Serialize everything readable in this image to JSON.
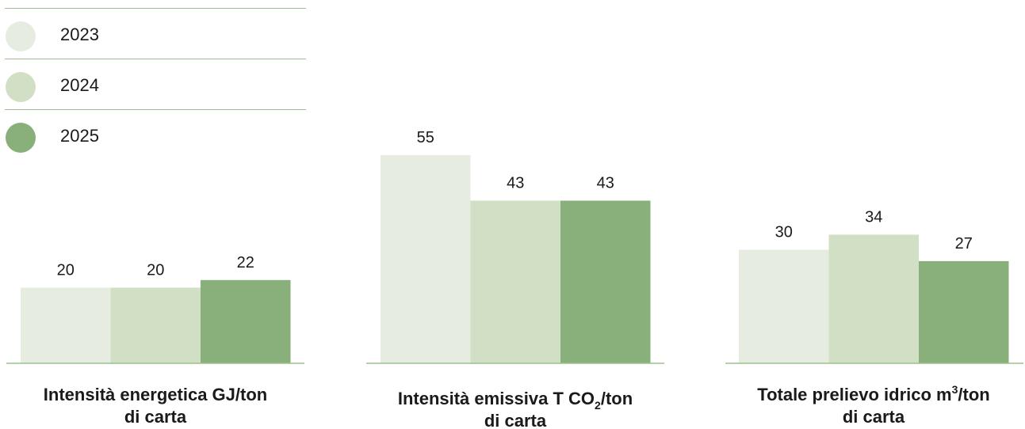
{
  "legend": [
    {
      "label": "2023",
      "color": "#e6ede0"
    },
    {
      "label": "2024",
      "color": "#d1dfc5"
    },
    {
      "label": "2025",
      "color": "#89b07b"
    }
  ],
  "colors": {
    "axis": "#9dbf92",
    "text": "#1a1a1a"
  },
  "chart_data": [
    {
      "type": "bar",
      "title_main": "Intensità energetica GJ/ton",
      "title_sub": "di carta",
      "series": [
        {
          "name": "2023",
          "values": [
            20
          ]
        },
        {
          "name": "2024",
          "values": [
            20
          ]
        },
        {
          "name": "2025",
          "values": [
            22
          ]
        }
      ],
      "legend_position": "top-left"
    },
    {
      "type": "bar",
      "title_main_pre": "Intensità emissiva T CO",
      "title_main_sub": "2",
      "title_main_post": "/ton",
      "title_sub": "di carta",
      "series": [
        {
          "name": "2023",
          "values": [
            55
          ]
        },
        {
          "name": "2024",
          "values": [
            43
          ]
        },
        {
          "name": "2025",
          "values": [
            43
          ]
        }
      ]
    },
    {
      "type": "bar",
      "title_main_pre": "Totale prelievo idrico m",
      "title_main_sup": "3",
      "title_main_post": "/ton",
      "title_sub": "di carta",
      "series": [
        {
          "name": "2023",
          "values": [
            30
          ]
        },
        {
          "name": "2024",
          "values": [
            34
          ]
        },
        {
          "name": "2025",
          "values": [
            27
          ]
        }
      ]
    }
  ]
}
